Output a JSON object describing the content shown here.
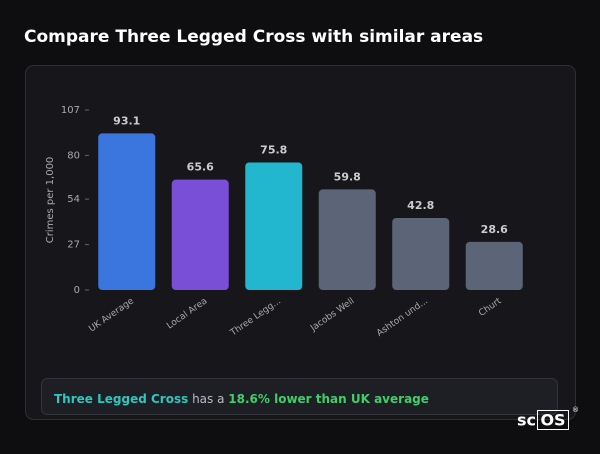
{
  "page": {
    "title": "Compare Three Legged Cross with similar areas",
    "summary": {
      "area": "Three Legged Cross",
      "connector": "has a",
      "highlight": "18.6% lower than UK average"
    },
    "logo": {
      "prefix": "sc",
      "boxed": "OS",
      "mark": "®"
    }
  },
  "chart_data": {
    "type": "bar",
    "y_label": "Crimes per 1,000",
    "categories": [
      "UK Average",
      "Local Area",
      "Three Legg...",
      "Jacobs Well",
      "Ashton und...",
      "Churt"
    ],
    "values": [
      93.1,
      65.6,
      75.8,
      59.8,
      42.8,
      28.6
    ],
    "colors": [
      "#3a76de",
      "#7a4fd8",
      "#22b7ce",
      "#5b6577",
      "#5b6577",
      "#5b6577"
    ],
    "ylim": [
      0,
      107
    ],
    "yticks": [
      0,
      27,
      54,
      80,
      107
    ],
    "grid": false
  }
}
